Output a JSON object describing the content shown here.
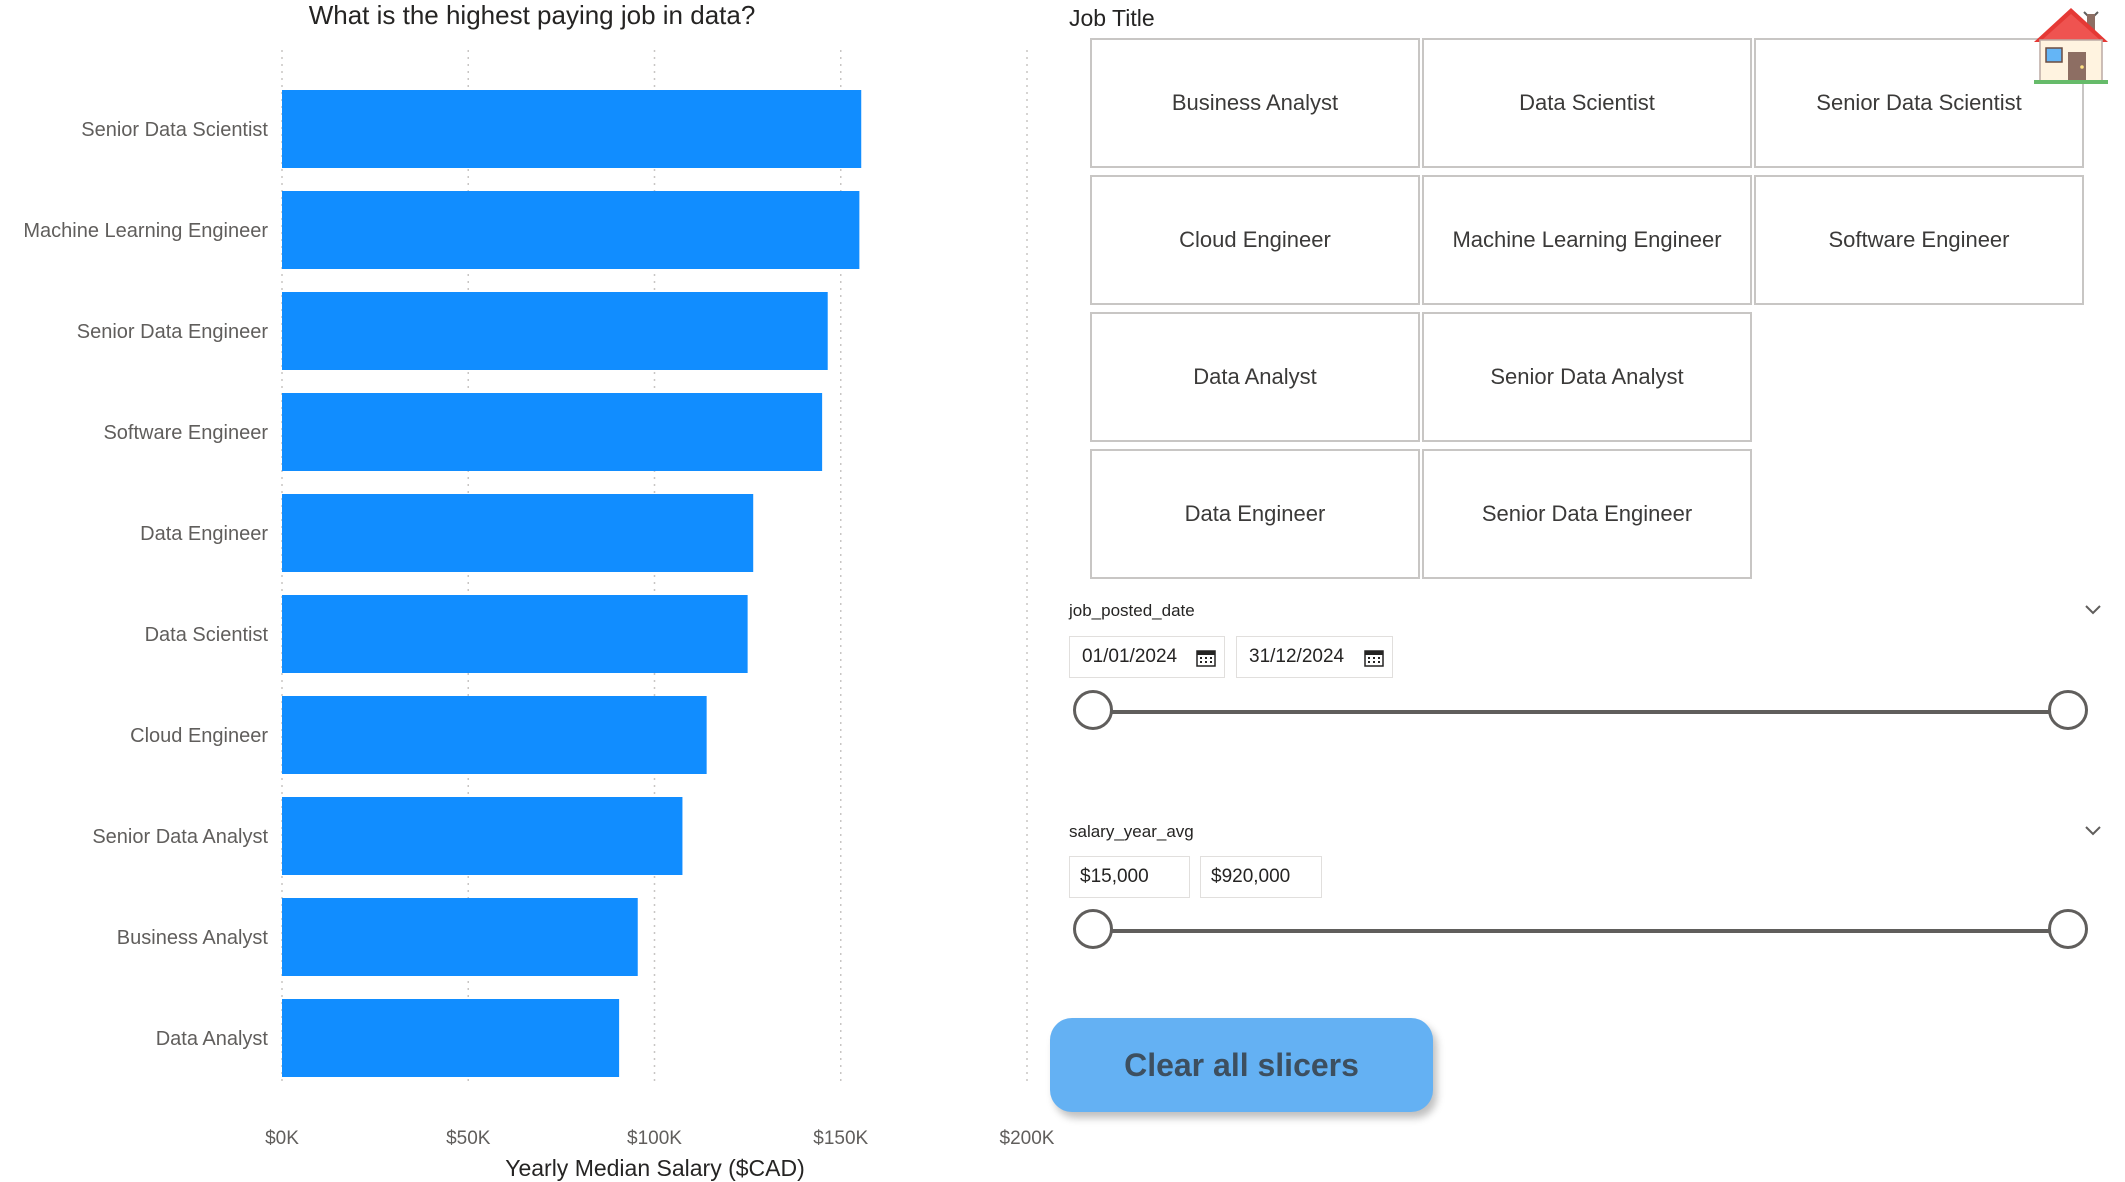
{
  "chart_data": {
    "type": "bar",
    "orientation": "horizontal",
    "title": "What is the highest paying job in data?",
    "xlabel": "Yearly Median Salary ($CAD)",
    "ylabel": "",
    "categories": [
      "Senior Data Scientist",
      "Machine Learning Engineer",
      "Senior Data Engineer",
      "Software Engineer",
      "Data Engineer",
      "Data Scientist",
      "Cloud Engineer",
      "Senior Data Analyst",
      "Business Analyst",
      "Data Analyst"
    ],
    "values": [
      155500,
      155000,
      146500,
      145000,
      126500,
      125000,
      114000,
      107500,
      95500,
      90500
    ],
    "xlim": [
      0,
      200000
    ],
    "xticks": [
      0,
      50000,
      100000,
      150000,
      200000
    ],
    "xtick_labels": [
      "$0K",
      "$50K",
      "$100K",
      "$150K",
      "$200K"
    ],
    "grid": "vertical dotted",
    "legend": "none",
    "bar_color": "#118dff"
  },
  "job_title_slicer": {
    "title": "Job Title",
    "tiles": [
      "Business Analyst",
      "Data Scientist",
      "Senior Data Scientist",
      "Cloud Engineer",
      "Machine Learning Engineer",
      "Software Engineer",
      "Data Analyst",
      "Senior Data Analyst",
      "Data Engineer",
      "Senior Data Engineer"
    ]
  },
  "date_slicer": {
    "label": "job_posted_date",
    "start": "01/01/2024",
    "end": "31/12/2024",
    "range_fraction": [
      0,
      1
    ]
  },
  "salary_slicer": {
    "label": "salary_year_avg",
    "min": "$15,000",
    "max": "$920,000",
    "range_fraction": [
      0,
      1
    ]
  },
  "clear_button": {
    "label": "Clear all slicers",
    "color": "#64b1f3"
  },
  "icons": {
    "home": "home-icon",
    "calendar": "calendar-icon",
    "chevron": "chevron-down-icon"
  }
}
